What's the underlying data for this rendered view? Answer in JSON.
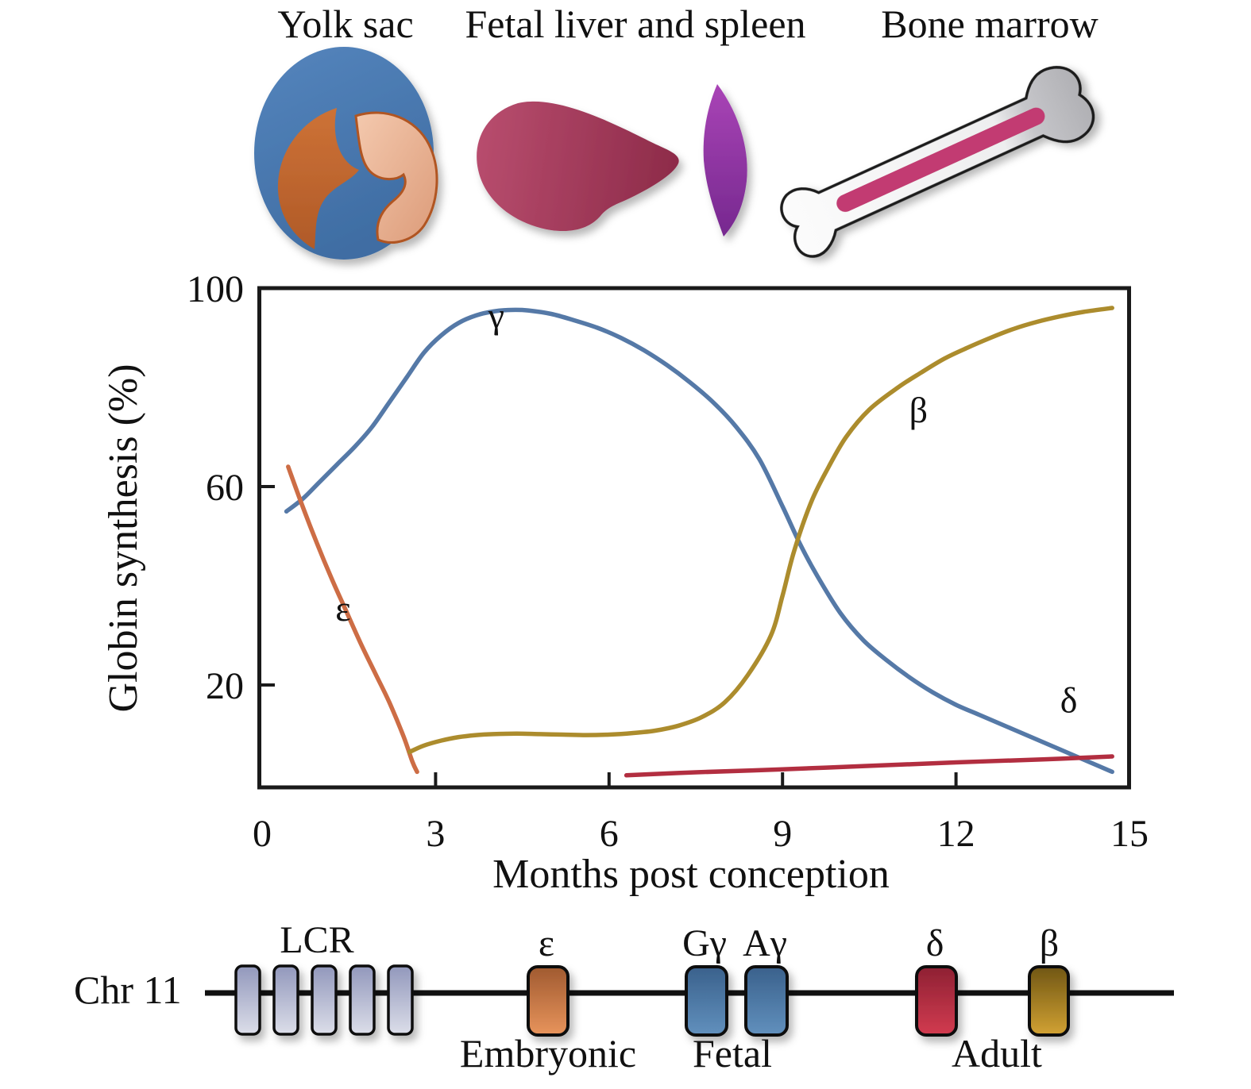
{
  "header": {
    "organs": [
      {
        "label": "Yolk sac"
      },
      {
        "label": "Fetal liver and spleen"
      },
      {
        "label": "Bone marrow"
      }
    ]
  },
  "chart_data": {
    "type": "line",
    "title": "",
    "xlabel": "Months post conception",
    "ylabel": "Globin synthesis (%)",
    "xlim": [
      0,
      15
    ],
    "ylim": [
      0,
      100
    ],
    "xticks": [
      0,
      3,
      6,
      9,
      12,
      15
    ],
    "yticks": [
      100,
      60,
      20
    ],
    "grid": false,
    "legend_position": "inline-curve-labels",
    "series": [
      {
        "name": "gamma",
        "label": "γ",
        "color": "#5579a7",
        "label_pos": [
          4.05,
          92
        ],
        "points": [
          [
            0.42,
            55
          ],
          [
            0.7,
            57.5
          ],
          [
            1.0,
            61
          ],
          [
            1.3,
            64.5
          ],
          [
            1.6,
            68
          ],
          [
            1.9,
            72
          ],
          [
            2.2,
            77
          ],
          [
            2.5,
            82
          ],
          [
            2.8,
            87
          ],
          [
            3.1,
            90.5
          ],
          [
            3.4,
            93
          ],
          [
            3.7,
            94.5
          ],
          [
            4.0,
            95.3
          ],
          [
            4.3,
            95.6
          ],
          [
            4.6,
            95.5
          ],
          [
            5.0,
            94.8
          ],
          [
            5.4,
            93.5
          ],
          [
            5.8,
            92
          ],
          [
            6.2,
            90
          ],
          [
            6.6,
            87.5
          ],
          [
            7.0,
            84.5
          ],
          [
            7.4,
            81
          ],
          [
            7.8,
            77
          ],
          [
            8.2,
            72
          ],
          [
            8.6,
            65.5
          ],
          [
            9.0,
            56
          ],
          [
            9.3,
            48.5
          ],
          [
            9.6,
            42
          ],
          [
            10.0,
            34.5
          ],
          [
            10.4,
            29
          ],
          [
            10.8,
            25
          ],
          [
            11.2,
            21.5
          ],
          [
            11.6,
            18.5
          ],
          [
            12.0,
            16
          ],
          [
            12.4,
            14
          ],
          [
            12.8,
            12
          ],
          [
            13.2,
            10
          ],
          [
            13.6,
            8
          ],
          [
            14.0,
            6
          ],
          [
            14.4,
            4
          ],
          [
            14.7,
            2.5
          ]
        ]
      },
      {
        "name": "epsilon",
        "label": "ε",
        "color": "#cd6d45",
        "label_pos": [
          1.4,
          33
        ],
        "points": [
          [
            0.45,
            64
          ],
          [
            0.7,
            56
          ],
          [
            0.95,
            48.5
          ],
          [
            1.2,
            41.5
          ],
          [
            1.45,
            35
          ],
          [
            1.7,
            28.5
          ],
          [
            1.95,
            22.5
          ],
          [
            2.2,
            16.5
          ],
          [
            2.45,
            9.5
          ],
          [
            2.6,
            4.5
          ],
          [
            2.68,
            2.5
          ]
        ]
      },
      {
        "name": "beta",
        "label": "β",
        "color": "#ac8c2d",
        "label_pos": [
          11.35,
          73
        ],
        "points": [
          [
            2.55,
            6.5
          ],
          [
            2.8,
            7.8
          ],
          [
            3.1,
            8.8
          ],
          [
            3.4,
            9.5
          ],
          [
            3.7,
            9.9
          ],
          [
            4.0,
            10.1
          ],
          [
            4.4,
            10.2
          ],
          [
            4.8,
            10.1
          ],
          [
            5.2,
            10
          ],
          [
            5.6,
            9.9
          ],
          [
            6.0,
            10
          ],
          [
            6.4,
            10.3
          ],
          [
            6.8,
            10.8
          ],
          [
            7.2,
            11.8
          ],
          [
            7.6,
            13.5
          ],
          [
            8.0,
            16.5
          ],
          [
            8.4,
            22
          ],
          [
            8.8,
            30
          ],
          [
            9.0,
            38
          ],
          [
            9.2,
            47
          ],
          [
            9.5,
            57
          ],
          [
            9.8,
            64
          ],
          [
            10.1,
            70
          ],
          [
            10.5,
            75.5
          ],
          [
            11.0,
            80
          ],
          [
            11.4,
            83
          ],
          [
            11.8,
            85.8
          ],
          [
            12.2,
            88
          ],
          [
            12.6,
            90
          ],
          [
            13.0,
            91.8
          ],
          [
            13.4,
            93.2
          ],
          [
            13.8,
            94.3
          ],
          [
            14.2,
            95.2
          ],
          [
            14.7,
            96
          ]
        ]
      },
      {
        "name": "delta",
        "label": "δ",
        "color": "#b22e40",
        "label_pos": [
          13.95,
          14.5
        ],
        "points": [
          [
            6.3,
            1.8
          ],
          [
            7.5,
            2.4
          ],
          [
            9.0,
            3.0
          ],
          [
            10.5,
            3.7
          ],
          [
            12.0,
            4.4
          ],
          [
            13.5,
            5.0
          ],
          [
            14.7,
            5.6
          ]
        ]
      }
    ]
  },
  "gene_map": {
    "chromosome_label": "Chr 11",
    "lcr": {
      "label": "LCR",
      "box_count": 5
    },
    "genes": [
      {
        "symbol": "ε",
        "group": "Embryonic"
      },
      {
        "symbol": "Gγ",
        "group": "Fetal"
      },
      {
        "symbol": "Aγ",
        "group": "Fetal"
      },
      {
        "symbol": "δ",
        "group": "Adult"
      },
      {
        "symbol": "β",
        "group": "Adult"
      }
    ],
    "group_labels": {
      "embryonic": "Embryonic",
      "fetal": "Fetal",
      "adult": "Adult"
    }
  },
  "colors": {
    "axis": "#1a1a1a",
    "text": "#111111",
    "yolk_outer_top": "#5585bd",
    "yolk_outer_bottom": "#3f6da3",
    "yolk_crescent_top": "#cd7236",
    "yolk_crescent_bottom": "#b05a28",
    "yolk_inner_top": "#f4c9ae",
    "yolk_inner_bottom": "#dc9b79",
    "yolk_inner_stroke": "#b05520",
    "liver_left": "#b84d6e",
    "liver_right": "#8c2a48",
    "spleen_top": "#a944b6",
    "spleen_bottom": "#76288f",
    "bone_light": "#fcfcfc",
    "bone_mid": "#eeeeef",
    "bone_grey": "#c6c6ca",
    "bone_dark": "#aeaeb2",
    "marrow": "#c23a72",
    "lcr_top": "#9298bc",
    "lcr_bottom": "#dcdee9",
    "gene_eps_top": "#a05a30",
    "gene_eps_bottom": "#e8945c",
    "gene_fetal_top": "#3a618c",
    "gene_fetal_bottom": "#6190bd",
    "gene_delta_top": "#8e2133",
    "gene_delta_bottom": "#d23b50",
    "gene_beta_top": "#705614",
    "gene_beta_bottom": "#d2a233"
  }
}
